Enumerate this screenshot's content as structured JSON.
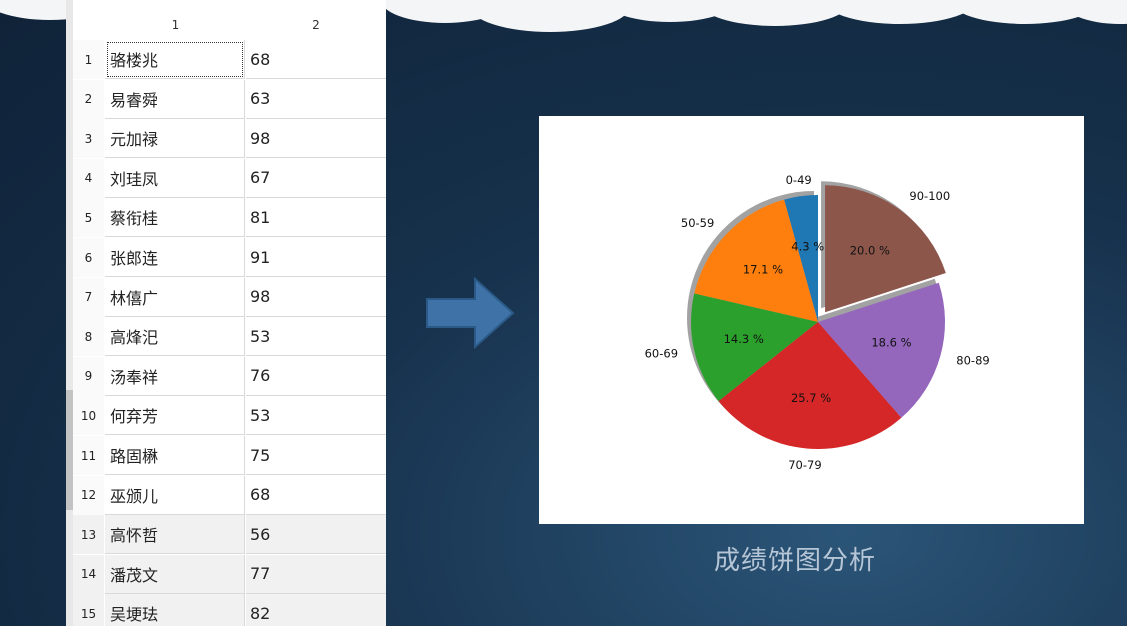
{
  "table": {
    "column_headers": [
      "1",
      "2"
    ],
    "rows": [
      {
        "index": "1",
        "name": "骆楼兆",
        "score": "68"
      },
      {
        "index": "2",
        "name": "易睿舜",
        "score": "63"
      },
      {
        "index": "3",
        "name": "元加禄",
        "score": "98"
      },
      {
        "index": "4",
        "name": "刘珪凤",
        "score": "67"
      },
      {
        "index": "5",
        "name": "蔡衔桂",
        "score": "81"
      },
      {
        "index": "6",
        "name": "张郎连",
        "score": "91"
      },
      {
        "index": "7",
        "name": "林僖广",
        "score": "98"
      },
      {
        "index": "8",
        "name": "高烽汜",
        "score": "53"
      },
      {
        "index": "9",
        "name": "汤奉祥",
        "score": "76"
      },
      {
        "index": "10",
        "name": "何弃芳",
        "score": "53"
      },
      {
        "index": "11",
        "name": "路固楙",
        "score": "75"
      },
      {
        "index": "12",
        "name": "巫颁儿",
        "score": "68"
      },
      {
        "index": "13",
        "name": "高怀哲",
        "score": "56"
      },
      {
        "index": "14",
        "name": "潘茂文",
        "score": "77"
      },
      {
        "index": "15",
        "name": "吴埂珐",
        "score": "82"
      }
    ]
  },
  "caption": "成绩饼图分析",
  "icons": {
    "arrow": "right-arrow-icon"
  },
  "colors": {
    "arrow": "#3f73a8",
    "background": "#17324d"
  },
  "chart_data": {
    "type": "pie",
    "categories": [
      "0-49",
      "50-59",
      "60-69",
      "70-79",
      "80-89",
      "90-100"
    ],
    "values": [
      4.3,
      17.1,
      14.3,
      25.7,
      18.6,
      20.0
    ],
    "labels": [
      "4.3 %",
      "17.1 %",
      "14.3 %",
      "25.7 %",
      "18.6 %",
      "20.0 %"
    ],
    "colors": [
      "#1f77b4",
      "#ff7f0e",
      "#2ca02c",
      "#d62728",
      "#9467bd",
      "#8c564b"
    ],
    "exploded": "90-100",
    "shadow": true,
    "direction": "counterclockwise from top",
    "title": ""
  }
}
